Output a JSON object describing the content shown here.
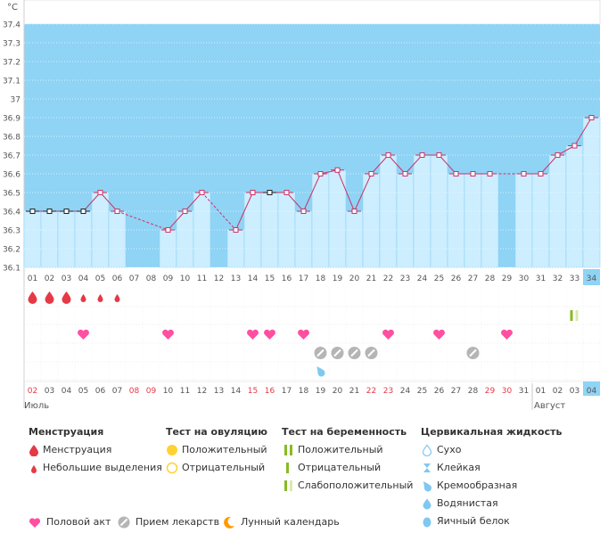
{
  "chart_data": {
    "type": "line",
    "unit": "°C",
    "ylim": [
      36.1,
      37.4
    ],
    "yticks": [
      "36.1",
      "36.2",
      "36.3",
      "36.4",
      "36.5",
      "36.6",
      "36.7",
      "36.8",
      "36.9",
      "37",
      "37.1",
      "37.2",
      "37.3",
      "37.4"
    ],
    "cycle_days": [
      "01",
      "02",
      "03",
      "04",
      "05",
      "06",
      "07",
      "08",
      "09",
      "10",
      "11",
      "12",
      "13",
      "14",
      "15",
      "16",
      "17",
      "18",
      "19",
      "20",
      "21",
      "22",
      "23",
      "24",
      "25",
      "26",
      "27",
      "28",
      "29",
      "30",
      "31",
      "32",
      "33",
      "34"
    ],
    "current_day": "34",
    "temperatures": [
      36.4,
      36.4,
      36.4,
      36.4,
      36.5,
      36.4,
      null,
      null,
      36.3,
      36.4,
      36.5,
      null,
      36.3,
      36.5,
      36.5,
      36.5,
      36.4,
      36.6,
      36.62,
      36.4,
      36.6,
      36.7,
      36.6,
      36.7,
      36.7,
      36.6,
      36.6,
      36.6,
      null,
      36.6,
      36.6,
      36.7,
      36.75,
      36.9
    ],
    "temp_point_style": [
      "black",
      "black",
      "black",
      "black",
      "pink",
      "pink",
      null,
      null,
      "pink",
      "pink",
      "pink",
      null,
      "pink",
      "pink",
      "black",
      "pink",
      "pink",
      "pink",
      "pink",
      "pink",
      "pink",
      "pink",
      "pink",
      "pink",
      "pink",
      "pink",
      "pink",
      "pink",
      null,
      "pink",
      "pink",
      "pink",
      "pink",
      "pink"
    ],
    "dashed_gaps": [
      [
        6,
        9
      ],
      [
        11,
        13
      ],
      [
        28,
        30
      ]
    ],
    "menstruation": [
      {
        "day": 1,
        "type": "heavy"
      },
      {
        "day": 2,
        "type": "heavy"
      },
      {
        "day": 3,
        "type": "heavy"
      },
      {
        "day": 4,
        "type": "light"
      },
      {
        "day": 5,
        "type": "light"
      },
      {
        "day": 6,
        "type": "light"
      }
    ],
    "ovulation_test": [],
    "pregnancy_test": [
      {
        "day": 33,
        "type": "weak_positive"
      }
    ],
    "cervical_fluid": [
      {
        "day": 18,
        "type": "creamy"
      }
    ],
    "intercourse": [
      4,
      9,
      14,
      15,
      17,
      22,
      25,
      29
    ],
    "medication": [
      18,
      19,
      20,
      21,
      27
    ],
    "dates": [
      "02",
      "03",
      "04",
      "05",
      "06",
      "07",
      "08",
      "09",
      "10",
      "11",
      "12",
      "13",
      "14",
      "15",
      "16",
      "17",
      "18",
      "19",
      "20",
      "21",
      "22",
      "23",
      "24",
      "25",
      "26",
      "27",
      "28",
      "29",
      "30",
      "31",
      "01",
      "02",
      "03",
      "04"
    ],
    "weekend_dates": [
      0,
      6,
      7,
      13,
      14,
      20,
      21,
      27,
      28
    ],
    "month_labels": [
      {
        "index": 0,
        "label": "Июль"
      },
      {
        "index": 30,
        "label": "Август"
      }
    ],
    "colors": {
      "bar": "#cceeff",
      "bar_border": "#8fd3f5",
      "missing": "#8fd3f5",
      "line": "#cc3366",
      "pink": "#e6457a",
      "red": "#e63946",
      "weekend": "#e63946",
      "heart": "#ff4fa0",
      "pill": "#aaaaaa",
      "cervical": "#7fc8f0",
      "test_green": "#88bb22"
    }
  },
  "legend": {
    "menstruation": {
      "title": "Менструация",
      "items": [
        "Менструация",
        "Небольшие выделения"
      ]
    },
    "ovulation": {
      "title": "Тест на овуляцию",
      "items": [
        "Положительный",
        "Отрицательный"
      ]
    },
    "pregnancy": {
      "title": "Тест на беременность",
      "items": [
        "Положительный",
        "Отрицательный",
        "Слабоположительный"
      ]
    },
    "cervical": {
      "title": "Цервикальная жидкость",
      "items": [
        "Сухо",
        "Клейкая",
        "Кремообразная",
        "Водянистая",
        "Яичный белок"
      ]
    },
    "bottom": [
      "Половой акт",
      "Прием лекарств",
      "Лунный календарь"
    ]
  }
}
